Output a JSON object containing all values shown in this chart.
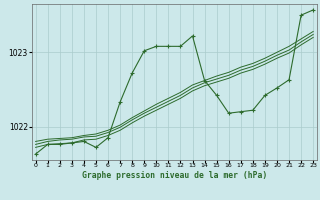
{
  "title": "Graphe pression niveau de la mer (hPa)",
  "bg_color": "#cce8ea",
  "line_color": "#2d6b2d",
  "grid_color": "#aacccc",
  "x_ticks": [
    0,
    1,
    2,
    3,
    4,
    5,
    6,
    7,
    8,
    9,
    10,
    11,
    12,
    13,
    14,
    15,
    16,
    17,
    18,
    19,
    20,
    21,
    22,
    23
  ],
  "y_ticks": [
    1022,
    1023
  ],
  "ylim": [
    1021.55,
    1023.65
  ],
  "xlim": [
    -0.3,
    23.3
  ],
  "line1_x": [
    0,
    1,
    2,
    3,
    4,
    5,
    6,
    7,
    8,
    9,
    10,
    11,
    12,
    13,
    14,
    15,
    16,
    17,
    18,
    19,
    20,
    21,
    22,
    23
  ],
  "line1_y": [
    1021.63,
    1021.76,
    1021.76,
    1021.78,
    1021.8,
    1021.72,
    1021.85,
    1022.33,
    1022.72,
    1023.02,
    1023.08,
    1023.08,
    1023.08,
    1023.22,
    1022.62,
    1022.42,
    1022.18,
    1022.2,
    1022.22,
    1022.42,
    1022.52,
    1022.63,
    1023.5,
    1023.57
  ],
  "line2_x": [
    0,
    1,
    2,
    3,
    4,
    5,
    6,
    7,
    8,
    9,
    10,
    11,
    12,
    13,
    14,
    15,
    16,
    17,
    18,
    19,
    20,
    21,
    22,
    23
  ],
  "line2_y": [
    1021.72,
    1021.76,
    1021.77,
    1021.78,
    1021.82,
    1021.83,
    1021.88,
    1021.95,
    1022.05,
    1022.14,
    1022.22,
    1022.3,
    1022.38,
    1022.48,
    1022.55,
    1022.6,
    1022.65,
    1022.72,
    1022.77,
    1022.84,
    1022.92,
    1022.99,
    1023.1,
    1023.2
  ],
  "line3_x": [
    0,
    1,
    2,
    3,
    4,
    5,
    6,
    7,
    8,
    9,
    10,
    11,
    12,
    13,
    14,
    15,
    16,
    17,
    18,
    19,
    20,
    21,
    22,
    23
  ],
  "line3_y": [
    1021.76,
    1021.8,
    1021.82,
    1021.83,
    1021.86,
    1021.87,
    1021.92,
    1021.99,
    1022.09,
    1022.18,
    1022.26,
    1022.34,
    1022.42,
    1022.52,
    1022.59,
    1022.64,
    1022.69,
    1022.76,
    1022.81,
    1022.88,
    1022.96,
    1023.03,
    1023.14,
    1023.24
  ],
  "line4_x": [
    0,
    1,
    2,
    3,
    4,
    5,
    6,
    7,
    8,
    9,
    10,
    11,
    12,
    13,
    14,
    15,
    16,
    17,
    18,
    19,
    20,
    21,
    22,
    23
  ],
  "line4_y": [
    1021.8,
    1021.83,
    1021.84,
    1021.85,
    1021.88,
    1021.9,
    1021.95,
    1022.02,
    1022.12,
    1022.21,
    1022.3,
    1022.38,
    1022.46,
    1022.56,
    1022.62,
    1022.68,
    1022.73,
    1022.8,
    1022.85,
    1022.92,
    1023.0,
    1023.08,
    1023.18,
    1023.28
  ]
}
